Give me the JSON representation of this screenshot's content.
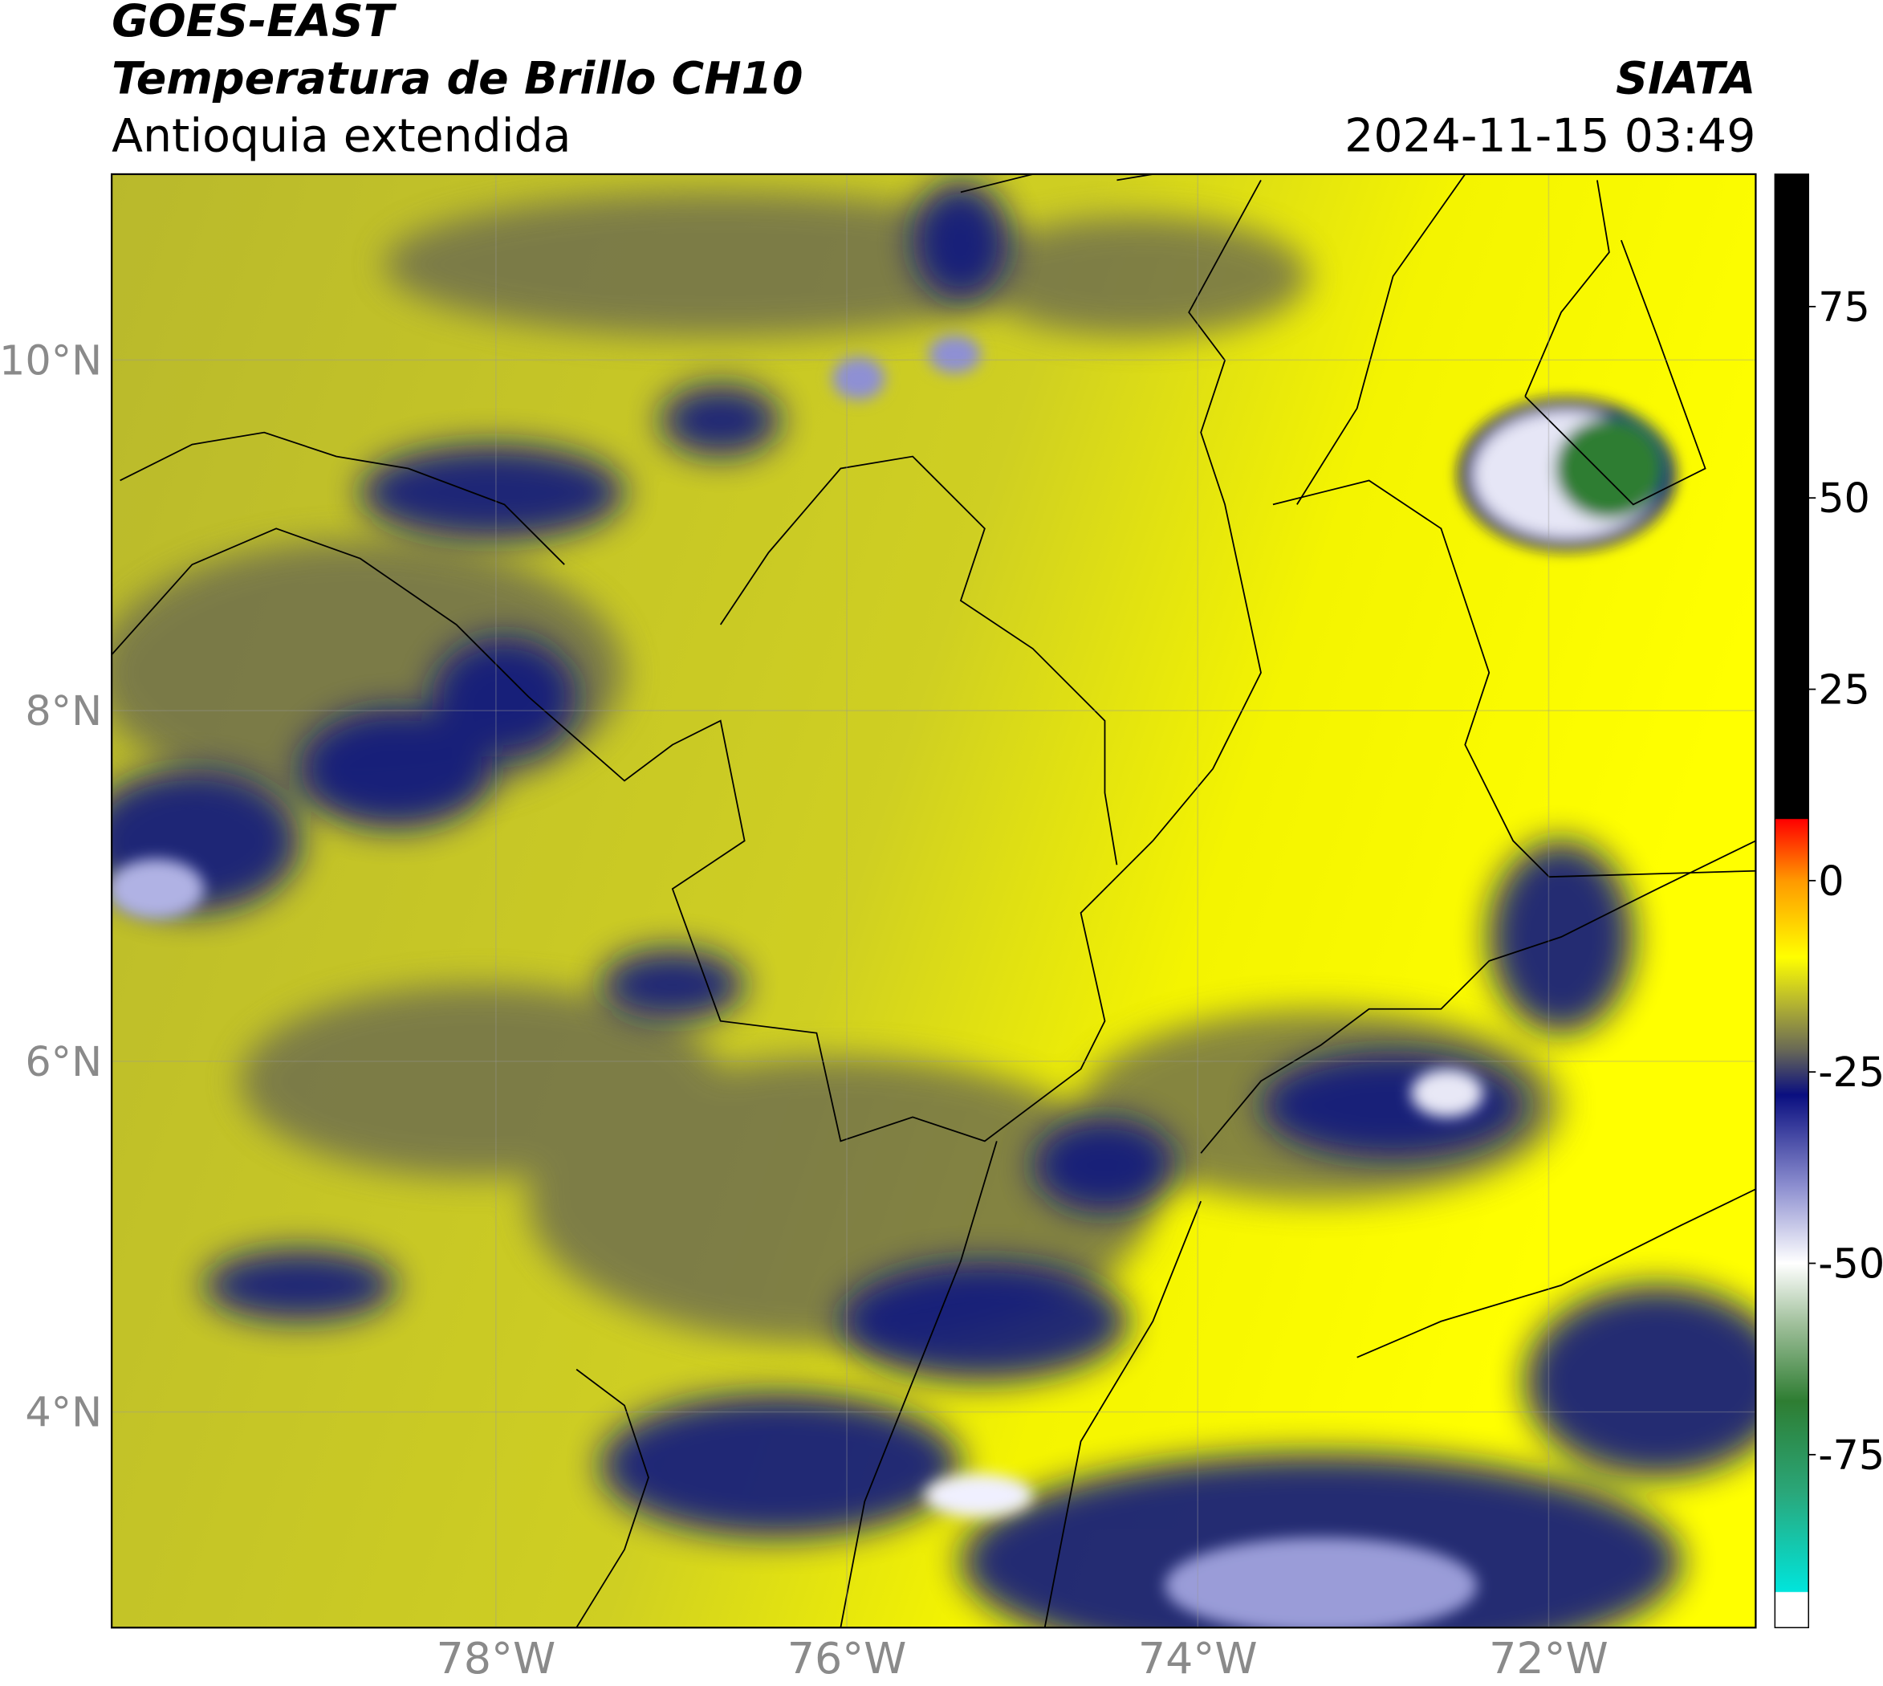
{
  "header": {
    "title": "GOES-EAST",
    "subtitle": "Temperatura de Brillo CH10",
    "region": "Antioquia extendida",
    "source": "SIATA",
    "datetime": "2024-11-15 03:49"
  },
  "map": {
    "lon_range": [
      -80.19,
      -70.82
    ],
    "lat_range": [
      2.77,
      11.06
    ],
    "lon_ticks": [
      {
        "value": -78,
        "label": "78°W"
      },
      {
        "value": -76,
        "label": "76°W"
      },
      {
        "value": -74,
        "label": "74°W"
      },
      {
        "value": -72,
        "label": "72°W"
      }
    ],
    "lat_ticks": [
      {
        "value": 10,
        "label": "10°N"
      },
      {
        "value": 8,
        "label": "8°N"
      },
      {
        "value": 6,
        "label": "6°N"
      },
      {
        "value": 4,
        "label": "4°N"
      }
    ],
    "grid": true
  },
  "colorbar": {
    "range": [
      -97.6,
      92.3
    ],
    "ticks": [
      75,
      50,
      25,
      0,
      -25,
      -50,
      -75
    ],
    "stops": [
      {
        "value": -97.6,
        "color": "#ffffff"
      },
      {
        "value": -93,
        "color": "#ffffff"
      },
      {
        "value": -92.9,
        "color": "#00e5dc"
      },
      {
        "value": -80,
        "color": "#2aa77a"
      },
      {
        "value": -68,
        "color": "#2e7d32"
      },
      {
        "value": -58,
        "color": "#9fbf9a"
      },
      {
        "value": -50,
        "color": "#ffffff"
      },
      {
        "value": -40,
        "color": "#8d8fd0"
      },
      {
        "value": -28,
        "color": "#0a0f80"
      },
      {
        "value": -22,
        "color": "#6a6a55"
      },
      {
        "value": -16,
        "color": "#b5b530"
      },
      {
        "value": -10,
        "color": "#ffff00"
      },
      {
        "value": 0,
        "color": "#ff9900"
      },
      {
        "value": 8,
        "color": "#ff0000"
      },
      {
        "value": 8.1,
        "color": "#000000"
      },
      {
        "value": 92.3,
        "color": "#000000"
      }
    ]
  }
}
